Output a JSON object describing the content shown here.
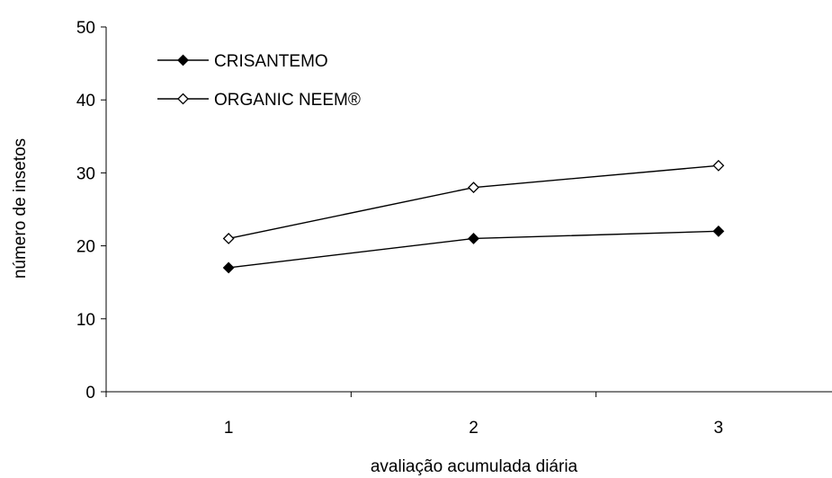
{
  "chart_data": {
    "type": "line",
    "title": "",
    "xlabel": "avaliação acumulada diária",
    "ylabel": "número de insetos",
    "categories": [
      "1",
      "2",
      "3"
    ],
    "ylim": [
      0,
      50
    ],
    "yticks": [
      "0",
      "10",
      "20",
      "30",
      "40",
      "50"
    ],
    "grid": false,
    "legend_position": "top-left",
    "series": [
      {
        "name": "CRISANTEMO",
        "values": [
          17,
          21,
          22
        ],
        "marker": "filled-diamond",
        "color": "#000000"
      },
      {
        "name": "ORGANIC NEEM®",
        "values": [
          21,
          28,
          31
        ],
        "marker": "open-diamond",
        "color": "#000000"
      }
    ]
  }
}
